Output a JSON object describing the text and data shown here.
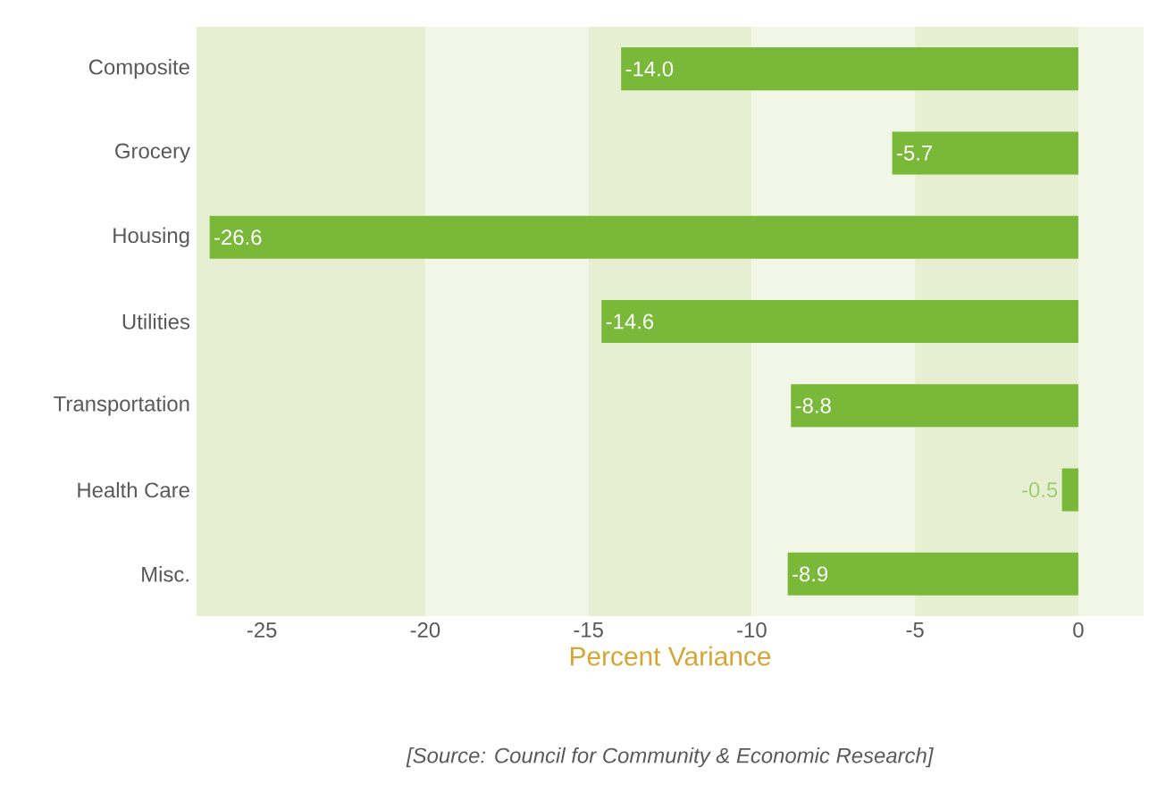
{
  "chart_data": {
    "type": "bar",
    "orientation": "horizontal",
    "categories": [
      "Composite",
      "Grocery",
      "Housing",
      "Utilities",
      "Transportation",
      "Health Care",
      "Misc."
    ],
    "values": [
      -14.0,
      -5.7,
      -26.6,
      -14.6,
      -8.8,
      -0.5,
      -8.9
    ],
    "value_labels": [
      "-14.0",
      "-5.7",
      "-26.6",
      "-14.6",
      "-8.8",
      "-0.5",
      "-8.9"
    ],
    "color": "#7ab83a",
    "xlim": [
      -27,
      2
    ],
    "xticks": [
      -25,
      -20,
      -15,
      -10,
      -5,
      0
    ],
    "xlabel": "Percent Variance",
    "annotations": [
      "*[Source: Council for Community & Economic Research]*"
    ],
    "bands": [
      {
        "axis": "x",
        "from": -27,
        "to": -20,
        "color": "#e7efd3"
      },
      {
        "axis": "x",
        "from": -20,
        "to": -15,
        "color": "#f2f6e6"
      },
      {
        "axis": "x",
        "from": -15,
        "to": -10,
        "color": "#e7efd3"
      },
      {
        "axis": "x",
        "from": -10,
        "to": -5,
        "color": "#f2f6e6"
      },
      {
        "axis": "x",
        "from": -5,
        "to": 0,
        "color": "#e7efd3"
      },
      {
        "axis": "x",
        "from": 0,
        "to": 2,
        "color": "#f2f6e6"
      }
    ]
  }
}
